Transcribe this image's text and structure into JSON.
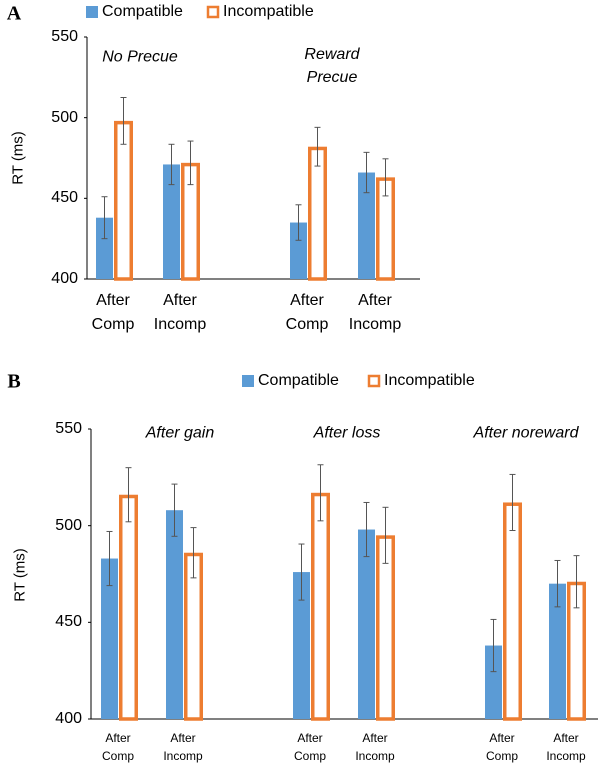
{
  "chart_data": [
    {
      "type": "bar",
      "panel_label": "A",
      "y_label": "RT (ms)",
      "categories": [
        "After Comp",
        "After Incomp",
        "After Comp",
        "After Incomp"
      ],
      "group_labels": [
        "No Precue",
        "Reward Precue"
      ],
      "series": [
        {
          "name": "Compatible",
          "color": "#5b9bd5",
          "style": "filled",
          "values": [
            438,
            471,
            435,
            466
          ],
          "errors": [
            13,
            12.5,
            11,
            12.5
          ]
        },
        {
          "name": "Incompatible",
          "color": "#ed7d31",
          "style": "outline",
          "values": [
            498,
            472,
            482,
            463
          ],
          "errors": [
            14.5,
            13.5,
            12,
            11.5
          ]
        }
      ],
      "ylim": [
        400,
        550
      ],
      "yticks": [
        400,
        450,
        500,
        550
      ],
      "grid": false
    },
    {
      "type": "bar",
      "panel_label": "B",
      "y_label": "RT (ms)",
      "categories": [
        "After Comp",
        "After Incomp",
        "After Comp",
        "After Incomp",
        "After Comp",
        "After Incomp"
      ],
      "group_labels": [
        "After gain",
        "After loss",
        "After noreward"
      ],
      "series": [
        {
          "name": "Compatible",
          "color": "#5b9bd5",
          "style": "filled",
          "values": [
            483,
            508,
            476,
            498,
            438,
            470
          ],
          "errors": [
            14,
            13.5,
            14.5,
            14,
            13.5,
            12
          ]
        },
        {
          "name": "Incompatible",
          "color": "#ed7d31",
          "style": "outline",
          "values": [
            516,
            486,
            517,
            495,
            512,
            471
          ],
          "errors": [
            14,
            13,
            14.5,
            14.5,
            14.5,
            13.5
          ]
        }
      ],
      "ylim": [
        400,
        550
      ],
      "yticks": [
        400,
        450,
        500,
        550
      ],
      "grid": false
    }
  ]
}
